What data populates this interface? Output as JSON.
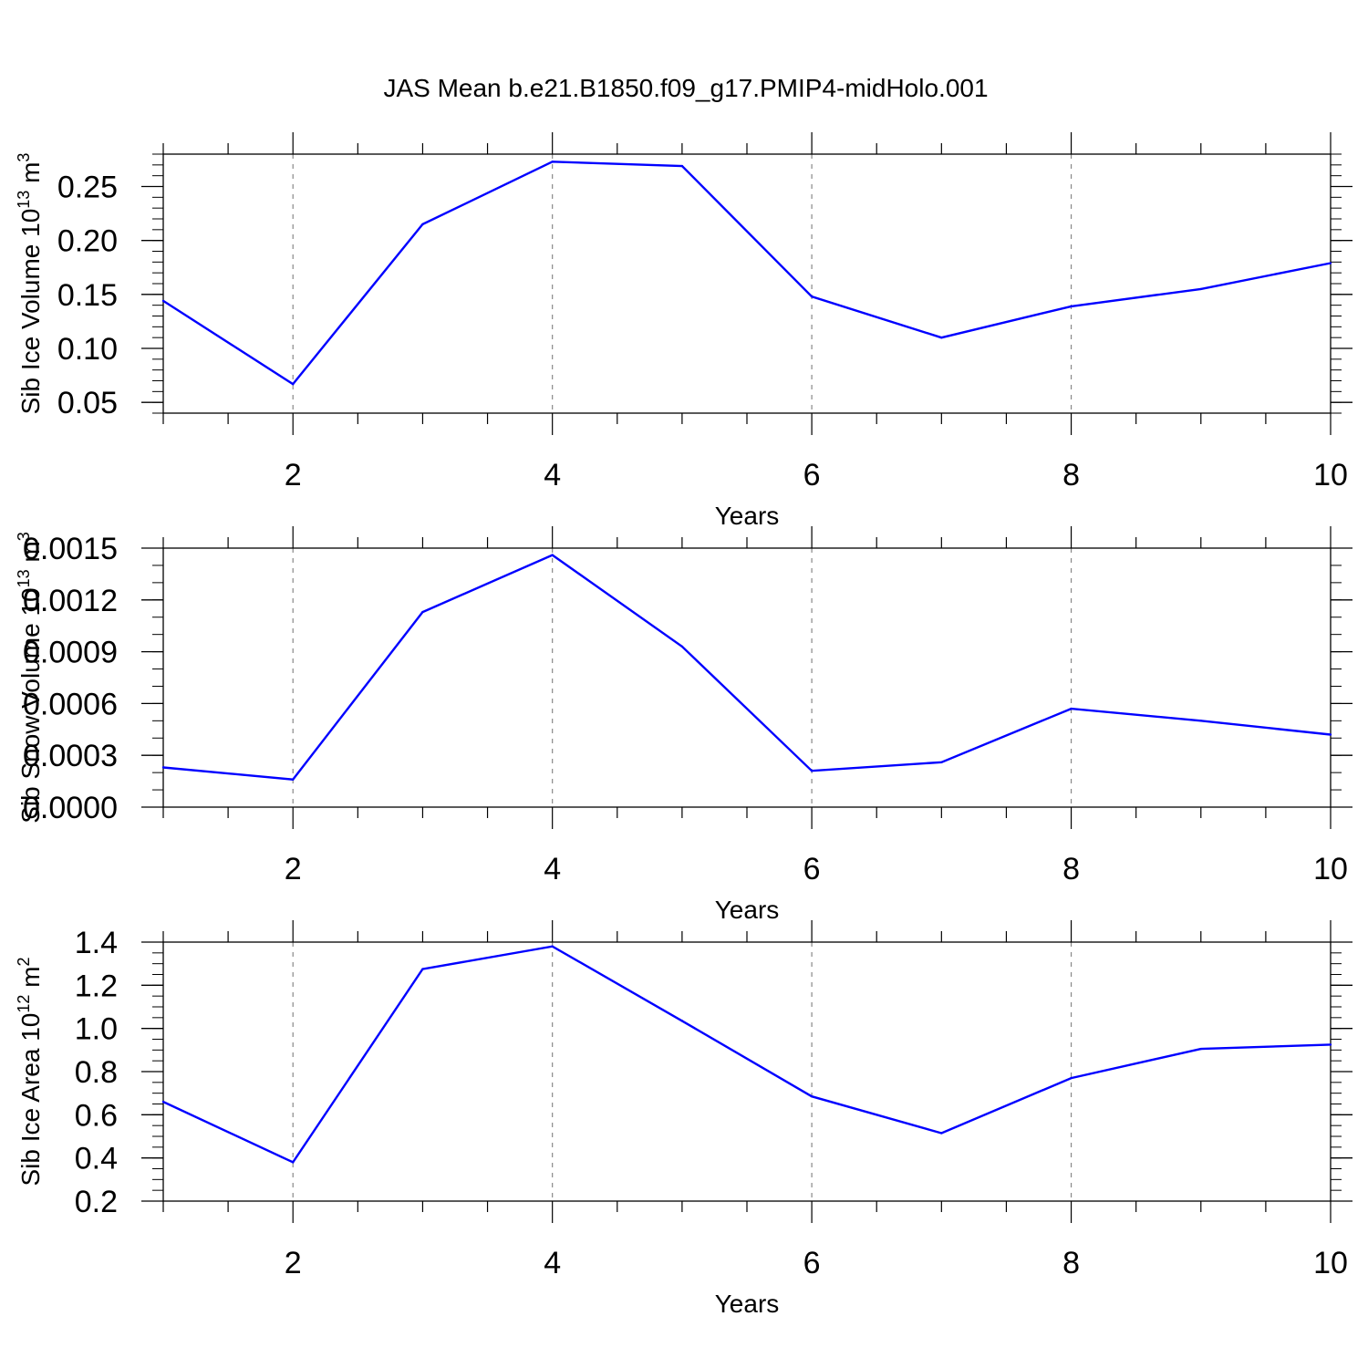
{
  "title": "JAS Mean b.e21.B1850.f09_g17.PMIP4-midHolo.001",
  "colors": {
    "line": "#0000ff",
    "axis": "#000000",
    "grid": "#888888",
    "background": "#ffffff"
  },
  "chart_data": [
    {
      "type": "line",
      "xlabel": "Years",
      "ylabel": {
        "base": "Sib Ice Volume 10",
        "exp": "13",
        "unit": " m",
        "unit_exp": "3"
      },
      "x": [
        1,
        2,
        3,
        4,
        5,
        6,
        7,
        8,
        9,
        10
      ],
      "values": [
        0.144,
        0.067,
        0.215,
        0.273,
        0.269,
        0.148,
        0.11,
        0.139,
        0.155,
        0.179
      ],
      "xlim": [
        1,
        10
      ],
      "ylim": [
        0.04,
        0.28
      ],
      "xticks": [
        2,
        4,
        6,
        8,
        10
      ],
      "xtick_labels": [
        "2",
        "4",
        "6",
        "8",
        "10"
      ],
      "yticks": [
        0.05,
        0.1,
        0.15,
        0.2,
        0.25
      ],
      "ytick_labels": [
        "0.05",
        "0.10",
        "0.15",
        "0.20",
        "0.25"
      ],
      "grid_x": [
        2,
        4,
        6,
        8
      ],
      "y_minor_step": 0.01
    },
    {
      "type": "line",
      "xlabel": "Years",
      "ylabel": {
        "base": "Sib Snow Volume 10",
        "exp": "13",
        "unit": " m",
        "unit_exp": "3"
      },
      "x": [
        1,
        2,
        3,
        4,
        5,
        6,
        7,
        8,
        9,
        10
      ],
      "values": [
        0.00023,
        0.00016,
        0.00113,
        0.00146,
        0.00093,
        0.00021,
        0.00026,
        0.00057,
        0.0005,
        0.00042
      ],
      "xlim": [
        1,
        10
      ],
      "ylim": [
        0.0,
        0.0015
      ],
      "xticks": [
        2,
        4,
        6,
        8,
        10
      ],
      "xtick_labels": [
        "2",
        "4",
        "6",
        "8",
        "10"
      ],
      "yticks": [
        0.0,
        0.0003,
        0.0006,
        0.0009,
        0.0012,
        0.0015
      ],
      "ytick_labels": [
        "0.0000",
        "0.0003",
        "0.0006",
        "0.0009",
        "0.0012",
        "0.0015"
      ],
      "grid_x": [
        2,
        4,
        6,
        8
      ],
      "y_minor_step": 0.0001
    },
    {
      "type": "line",
      "xlabel": "Years",
      "ylabel": {
        "base": "Sib Ice Area 10",
        "exp": "12",
        "unit": " m",
        "unit_exp": "2"
      },
      "x": [
        1,
        2,
        3,
        4,
        5,
        6,
        7,
        8,
        9,
        10
      ],
      "values": [
        0.66,
        0.38,
        1.275,
        1.38,
        1.035,
        0.685,
        0.515,
        0.77,
        0.905,
        0.925
      ],
      "xlim": [
        1,
        10
      ],
      "ylim": [
        0.2,
        1.4
      ],
      "xticks": [
        2,
        4,
        6,
        8,
        10
      ],
      "xtick_labels": [
        "2",
        "4",
        "6",
        "8",
        "10"
      ],
      "yticks": [
        0.2,
        0.4,
        0.6,
        0.8,
        1.0,
        1.2,
        1.4
      ],
      "ytick_labels": [
        "0.2",
        "0.4",
        "0.6",
        "0.8",
        "1.0",
        "1.2",
        "1.4"
      ],
      "grid_x": [
        2,
        4,
        6,
        8
      ],
      "y_minor_step": 0.05
    }
  ]
}
